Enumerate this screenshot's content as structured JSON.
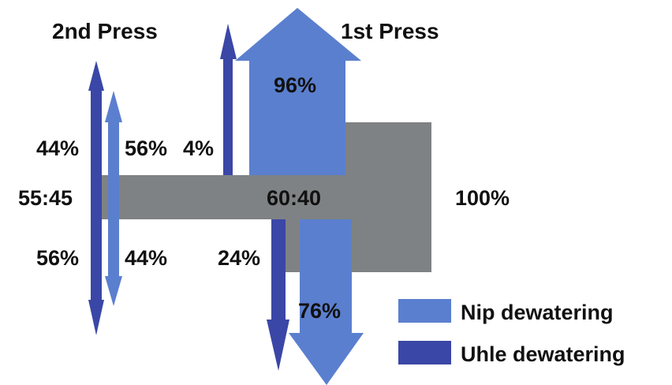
{
  "titles": {
    "second_press": "2nd Press",
    "first_press": "1st Press"
  },
  "labels": {
    "top_96": "96%",
    "left_44_top": "44%",
    "left_56_top": "56%",
    "mid_4": "4%",
    "ratio_55_45": "55:45",
    "ratio_60_40": "60:40",
    "hundred": "100%",
    "left_56_bottom": "56%",
    "left_44_bottom": "44%",
    "mid_24": "24%",
    "bottom_76": "76%"
  },
  "legend": [
    {
      "label": "Nip dewatering",
      "color": "#5b7fcf"
    },
    {
      "label": "Uhle dewatering",
      "color": "#3a47a6"
    }
  ],
  "colors": {
    "nip": "#5b7fcf",
    "uhle": "#3a47a6",
    "flow": "#7f8284"
  }
}
